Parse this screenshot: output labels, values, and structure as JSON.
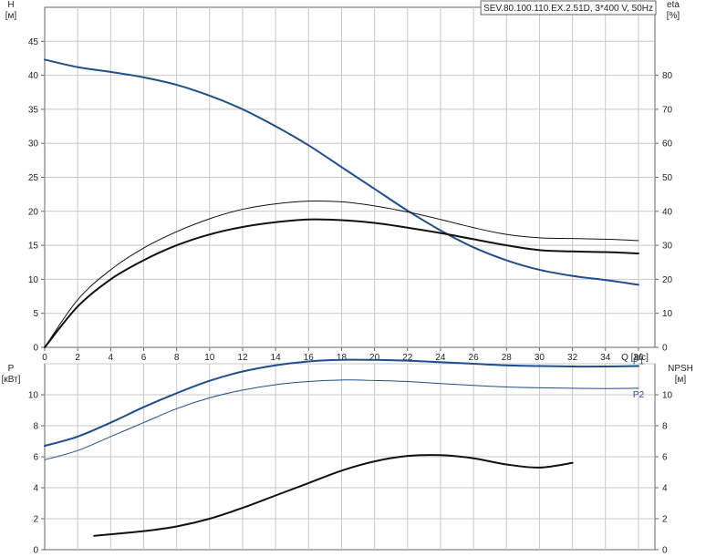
{
  "chart_data": [
    {
      "type": "line",
      "title": "SEV.80.100.110.EX.2.51D, 3*400 V, 50Hz",
      "xlabel": "Q [л/с]",
      "x_ticks": [
        0,
        2,
        4,
        6,
        8,
        10,
        12,
        14,
        16,
        18,
        20,
        22,
        24,
        26,
        28,
        30,
        32,
        34,
        36
      ],
      "xlim": [
        0,
        37
      ],
      "ylabel_left": "H\n[м]",
      "ylabel_right": "eta\n[%]",
      "y_left_ticks": [
        0,
        5,
        10,
        15,
        20,
        25,
        30,
        35,
        40,
        45
      ],
      "y_right_ticks": [
        0,
        10,
        20,
        30,
        40,
        50,
        60,
        70,
        80
      ],
      "y_left_lim": [
        0,
        50
      ],
      "y_right_lim": [
        0,
        100
      ],
      "grid": true,
      "series": [
        {
          "name": "",
          "axis": "left",
          "color": "#1f4e8c",
          "stroke": 2,
          "x": [
            0,
            2,
            4,
            6,
            8,
            10,
            12,
            14,
            16,
            18,
            20,
            22,
            24,
            26,
            28,
            30,
            32,
            34,
            36
          ],
          "y": [
            42.3,
            41.2,
            40.5,
            39.7,
            38.6,
            37.0,
            35.0,
            32.5,
            29.7,
            26.5,
            23.3,
            20.1,
            17.2,
            14.7,
            12.8,
            11.4,
            10.5,
            9.9,
            9.2
          ]
        },
        {
          "name": "",
          "axis": "left",
          "color": "#111111",
          "stroke": 1,
          "x": [
            0,
            2,
            4,
            6,
            8,
            10,
            12,
            14,
            16,
            18,
            20,
            22,
            24,
            26,
            28,
            30,
            32,
            34,
            36
          ],
          "y": [
            0,
            7.0,
            11.4,
            14.6,
            17.0,
            18.9,
            20.3,
            21.1,
            21.5,
            21.4,
            20.8,
            19.9,
            18.8,
            17.6,
            16.6,
            16.1,
            16.0,
            15.9,
            15.7
          ]
        },
        {
          "name": "",
          "axis": "left",
          "color": "#111111",
          "stroke": 2,
          "x": [
            0,
            2,
            4,
            6,
            8,
            10,
            12,
            14,
            16,
            18,
            20,
            22,
            24,
            26,
            28,
            30,
            32,
            34,
            36
          ],
          "y": [
            0,
            6.0,
            10.0,
            12.8,
            15.0,
            16.6,
            17.7,
            18.4,
            18.8,
            18.7,
            18.3,
            17.6,
            16.8,
            15.9,
            15.0,
            14.3,
            14.1,
            14.0,
            13.8
          ]
        }
      ]
    },
    {
      "type": "line",
      "ylabel_left": "P\n[кВт]",
      "ylabel_right": "NPSH\n[м]",
      "y_left_ticks": [
        0,
        2,
        4,
        6,
        8,
        10
      ],
      "y_right_ticks": [
        0,
        2,
        4,
        6,
        8,
        10
      ],
      "y_left_lim": [
        0,
        12
      ],
      "y_right_lim": [
        0,
        12
      ],
      "xlim": [
        0,
        37
      ],
      "grid": true,
      "series": [
        {
          "name": "P1",
          "axis": "left",
          "color": "#1f4e8c",
          "stroke": 2,
          "x": [
            0,
            2,
            4,
            6,
            8,
            10,
            12,
            14,
            16,
            18,
            20,
            22,
            24,
            26,
            28,
            30,
            32,
            34,
            36
          ],
          "y": [
            6.7,
            7.3,
            8.2,
            9.2,
            10.1,
            10.9,
            11.5,
            11.9,
            12.15,
            12.25,
            12.25,
            12.2,
            12.1,
            12.0,
            11.9,
            11.85,
            11.82,
            11.82,
            11.85
          ]
        },
        {
          "name": "P2",
          "axis": "left",
          "color": "#1f4e8c",
          "stroke": 1,
          "x": [
            0,
            2,
            4,
            6,
            8,
            10,
            12,
            14,
            16,
            18,
            20,
            22,
            24,
            26,
            28,
            30,
            32,
            34,
            36
          ],
          "y": [
            5.8,
            6.4,
            7.3,
            8.2,
            9.1,
            9.8,
            10.3,
            10.65,
            10.85,
            10.95,
            10.92,
            10.85,
            10.72,
            10.6,
            10.5,
            10.45,
            10.42,
            10.4,
            10.42
          ]
        },
        {
          "name": "",
          "axis": "right",
          "color": "#111111",
          "stroke": 2,
          "x": [
            3,
            6,
            8,
            10,
            12,
            14,
            16,
            18,
            20,
            22,
            24,
            26,
            28,
            30,
            32
          ],
          "y": [
            0.9,
            1.2,
            1.5,
            2.0,
            2.7,
            3.5,
            4.3,
            5.1,
            5.7,
            6.05,
            6.1,
            5.9,
            5.5,
            5.3,
            5.6
          ]
        }
      ]
    }
  ]
}
